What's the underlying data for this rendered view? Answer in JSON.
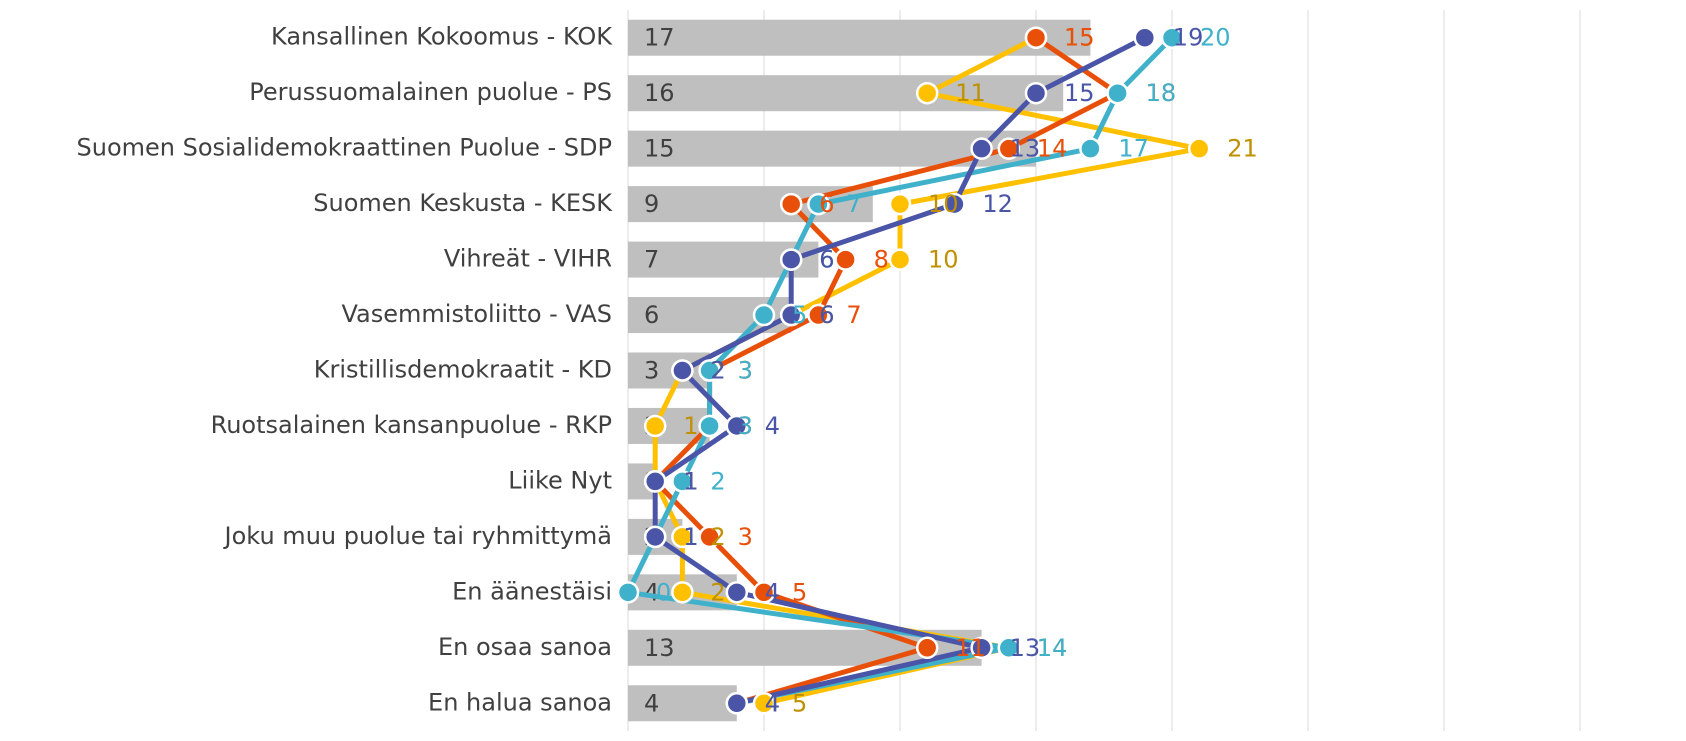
{
  "chart_data": {
    "type": "bar_line",
    "categories": [
      "Kansallinen Kokoomus - KOK",
      "Perussuomalainen puolue - PS",
      "Suomen Sosialidemokraattinen Puolue - SDP",
      "Suomen Keskusta - KESK",
      "Vihreät - VIHR",
      "Vasemmistoliitto - VAS",
      "Kristillisdemokraatit - KD",
      "Ruotsalainen kansanpuolue - RKP",
      "Liike Nyt",
      "Joku muu puolue tai ryhmittymä",
      "En äänestäisi",
      "En osaa sanoa",
      "En halua sanoa"
    ],
    "values": [
      17,
      16,
      15,
      9,
      7,
      6,
      3,
      3,
      1,
      2,
      4,
      13,
      4
    ],
    "color": "#bfbfbf",
    "series": [
      {
        "color": "#ffc000",
        "label_color": "#bf9000",
        "values": [
          15,
          11,
          21,
          10,
          10,
          6,
          2,
          1,
          1,
          2,
          2,
          14,
          5
        ]
      },
      {
        "color": "#e8500a",
        "label_color": "#e8500a",
        "values": [
          15,
          18,
          14,
          6,
          8,
          7,
          3,
          3,
          1,
          3,
          5,
          11,
          4
        ]
      },
      {
        "color": "#3fb1cb",
        "label_color": "#3fb1cb",
        "values": [
          20,
          18,
          17,
          7,
          6,
          5,
          3,
          3,
          2,
          1,
          0,
          14,
          4
        ]
      },
      {
        "color": "#4a55a8",
        "label_color": "#4a55a8",
        "values": [
          19,
          15,
          13,
          12,
          6,
          6,
          2,
          4,
          1,
          1,
          4,
          13,
          4
        ]
      }
    ],
    "xlim": [
      0,
      35
    ],
    "xticks": [
      0,
      5,
      10,
      15,
      20,
      25,
      30,
      35
    ],
    "grid": true
  }
}
